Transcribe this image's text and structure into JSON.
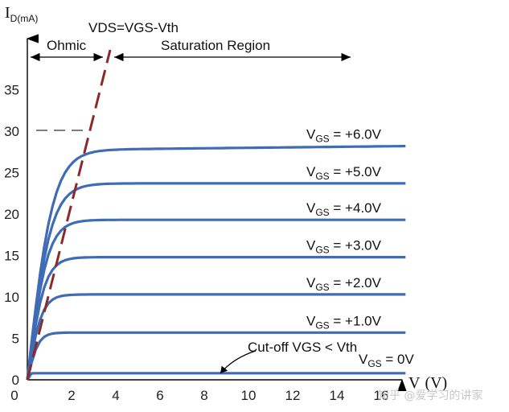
{
  "chart_data": {
    "type": "line",
    "title": "",
    "ylabel": {
      "main": "I",
      "sub": "D",
      "unit": "(mA)"
    },
    "xlabel": {
      "main": "V",
      "unit": "(V)"
    },
    "ylim": [
      0,
      37
    ],
    "xlim": [
      0,
      18
    ],
    "y_ticks": [
      "0",
      "5",
      "10",
      "15",
      "20",
      "25",
      "30",
      "35"
    ],
    "x_ticks": [
      "0",
      "2",
      "4",
      "6",
      "8",
      "10",
      "12",
      "14",
      "16"
    ],
    "boundary_label": "VDS=VGS-Vth",
    "regions": {
      "left": "Ohmic",
      "right": "Saturation Region"
    },
    "cutoff_label": "Cut-off VGS < Vth",
    "curve_color": "#3f6cb4",
    "boundary_color": "#8b2a2a",
    "series": [
      {
        "vgs": "+6.0V",
        "sat_current": 27.7,
        "sat_current_end": 28.2,
        "vsat": 3.7
      },
      {
        "vgs": "+5.0V",
        "sat_current": 23.7,
        "sat_current_end": 23.7,
        "vsat": 3.4
      },
      {
        "vgs": "+4.0V",
        "sat_current": 19.3,
        "sat_current_end": 19.3,
        "vsat": 2.9
      },
      {
        "vgs": "+3.0V",
        "sat_current": 14.8,
        "sat_current_end": 14.8,
        "vsat": 2.5
      },
      {
        "vgs": "+2.0V",
        "sat_current": 10.3,
        "sat_current_end": 10.3,
        "vsat": 2.1
      },
      {
        "vgs": "+1.0V",
        "sat_current": 5.7,
        "sat_current_end": 5.7,
        "vsat": 1.6
      },
      {
        "vgs": "0V",
        "sat_current": 0.8,
        "sat_current_end": 0.8,
        "vsat": 0.3
      }
    ],
    "series_label_prefix": "V",
    "series_label_sub": "GS",
    "series_label_eq": " = "
  },
  "watermark": "知乎 @爱学习的讲家"
}
